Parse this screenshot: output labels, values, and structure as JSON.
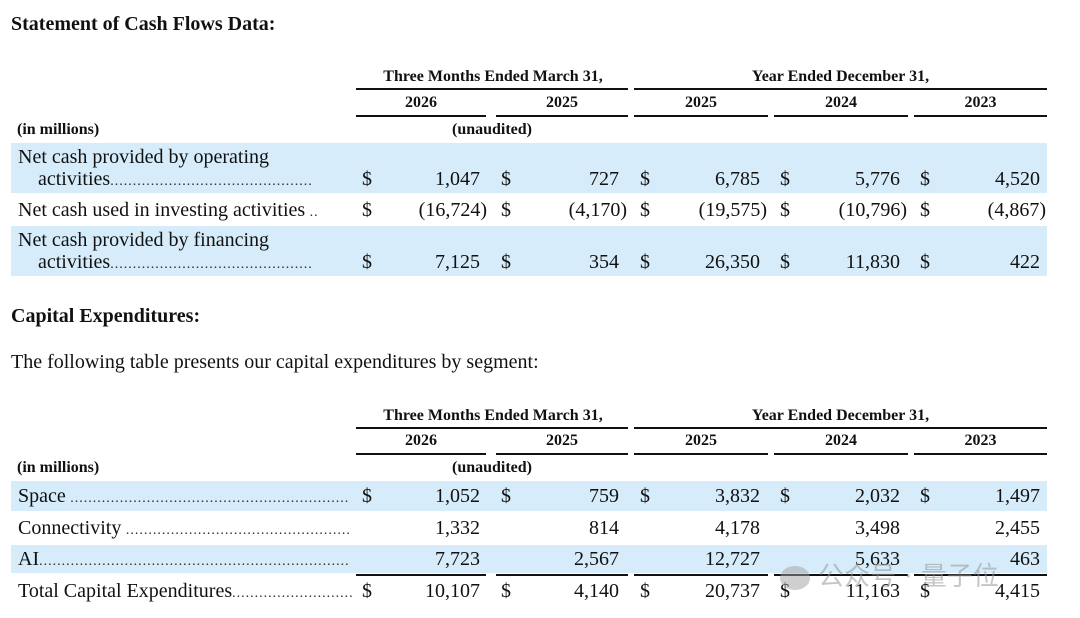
{
  "cash_flows": {
    "heading": "Statement of Cash Flows Data:",
    "period_three_months": "Three Months Ended March 31,",
    "period_year": "Year Ended December 31,",
    "years": [
      "2026",
      "2025",
      "2025",
      "2024",
      "2023"
    ],
    "units": "(in millions)",
    "unaudited": "(unaudited)",
    "rows": [
      {
        "label_line1": "Net cash provided by operating",
        "label_line2": "activities",
        "dollar": "$",
        "values": [
          "1,047",
          "727",
          "6,785",
          "5,776",
          "4,520"
        ]
      },
      {
        "label_line1": "Net cash used in investing activities",
        "label_line2": "",
        "dollar": "$",
        "values": [
          "(16,724)",
          "(4,170)",
          "(19,575)",
          "(10,796)",
          "(4,867)"
        ]
      },
      {
        "label_line1": "Net cash provided by financing",
        "label_line2": "activities",
        "dollar": "$",
        "values": [
          "7,125",
          "354",
          "26,350",
          "11,830",
          "422"
        ]
      }
    ]
  },
  "capex": {
    "heading": "Capital Expenditures:",
    "intro": "The following table presents our capital expenditures by segment:",
    "period_three_months": "Three Months Ended March 31,",
    "period_year": "Year Ended December 31,",
    "years": [
      "2026",
      "2025",
      "2025",
      "2024",
      "2023"
    ],
    "units": "(in millions)",
    "unaudited": "(unaudited)",
    "rows": [
      {
        "label": "Space",
        "dollar": "$",
        "values": [
          "1,052",
          "759",
          "3,832",
          "2,032",
          "1,497"
        ]
      },
      {
        "label": "Connectivity",
        "dollar": "",
        "values": [
          "1,332",
          "814",
          "4,178",
          "3,498",
          "2,455"
        ]
      },
      {
        "label": "AI",
        "dollar": "",
        "values": [
          "7,723",
          "2,567",
          "12,727",
          "5,633",
          "463"
        ]
      },
      {
        "label": "Total Capital Expenditures",
        "dollar": "$",
        "values": [
          "10,107",
          "4,140",
          "20,737",
          "11,163",
          "4,415"
        ]
      }
    ]
  },
  "watermark": "公众号 · 量子位",
  "colors": {
    "band": "#d6ecfa",
    "text": "#111111"
  }
}
